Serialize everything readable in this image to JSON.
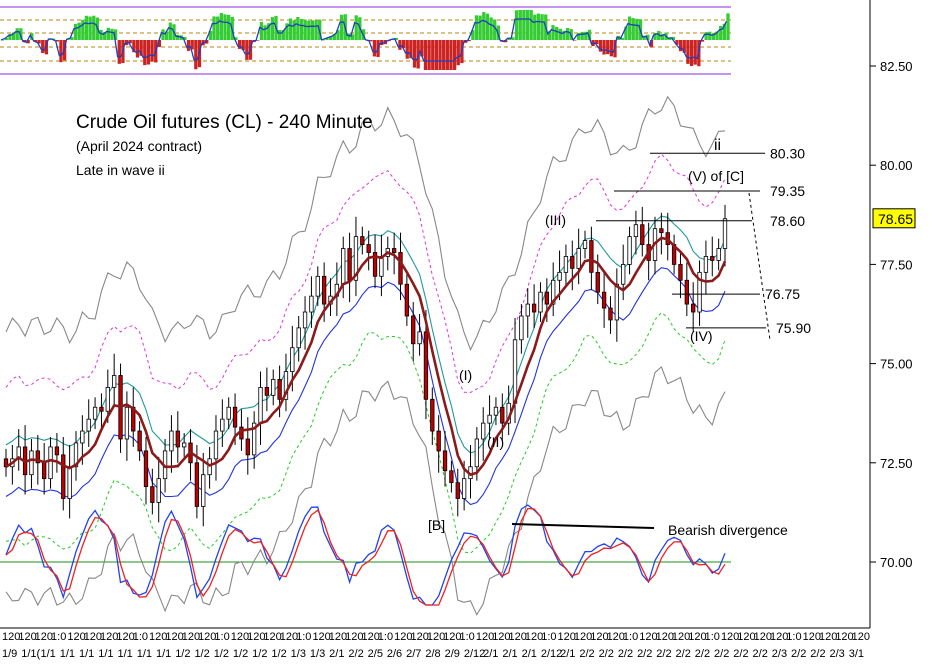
{
  "chart_data": {
    "type": "candlestick",
    "title": "Crude Oil futures (CL) - 240 Minute",
    "subtitle": "(April 2024 contract)",
    "note": "Late in wave ii",
    "ylim": [
      68.5,
      83.8
    ],
    "yticks": [
      "82.50",
      "80.00",
      "77.50",
      "75.00",
      "72.50",
      "70.00"
    ],
    "ytick_values": [
      82.5,
      80.0,
      77.5,
      75.0,
      72.5,
      70.0
    ],
    "last_price": "78.65",
    "last_price_value": 78.65,
    "x_axis_labels_row1": [
      "120",
      "120",
      "120",
      "1:0",
      "120",
      "120",
      "120",
      "120",
      "1:0",
      "120",
      "120",
      "120",
      "120",
      "1:0",
      "120",
      "120",
      "120",
      "120",
      "1:0",
      "120",
      "120",
      "120",
      "120",
      "1:0",
      "120",
      "120",
      "120",
      "120",
      "1:0",
      "120",
      "120",
      "120",
      "120",
      "1:0",
      "120",
      "120",
      "120",
      "120",
      "1:0",
      "120",
      "120",
      "120",
      "120",
      "1:0",
      "120",
      "120",
      "120",
      "120",
      "1:0",
      "120",
      "120",
      "120",
      "120"
    ],
    "x_axis_labels_row2": [
      "1/9",
      "1/1(",
      "1/1",
      "1/1",
      "1/1",
      "1/1",
      "1/1",
      "1/1",
      "1/1",
      "1/2",
      "1/2",
      "1/2",
      "1/2",
      "1/2",
      "1/2",
      "1/3",
      "1/3",
      "2/1",
      "2/2",
      "2/5",
      "2/6",
      "2/7",
      "2/8",
      "2/9",
      "2/12",
      "2/1",
      "2/1",
      "2/1",
      "2/12",
      "2/1",
      "2/2",
      "2/2",
      "2/2",
      "2/2",
      "2/2",
      "2/2",
      "2/2",
      "2/2",
      "2/2",
      "2/2",
      "2/3",
      "2/2",
      "2/2",
      "2/3",
      "3/1"
    ],
    "close_series": [
      72.4,
      72.6,
      72.9,
      72.2,
      72.8,
      72.5,
      72.1,
      72.9,
      72.7,
      71.6,
      72.4,
      73.0,
      73.3,
      73.6,
      73.9,
      73.8,
      74.4,
      74.7,
      73.1,
      73.9,
      73.3,
      72.8,
      71.9,
      71.5,
      72.1,
      72.8,
      73.3,
      72.9,
      73.0,
      72.5,
      71.4,
      72.2,
      72.6,
      73.3,
      73.6,
      73.9,
      73.4,
      73.1,
      72.7,
      73.5,
      74.4,
      74.2,
      74.6,
      74.1,
      74.8,
      75.4,
      75.9,
      76.3,
      76.7,
      77.2,
      76.5,
      76.7,
      77.0,
      77.9,
      77.1,
      78.2,
      78.0,
      77.8,
      77.2,
      77.7,
      77.9,
      77.8,
      77.0,
      76.2,
      75.5,
      75.8,
      74.1,
      73.3,
      72.8,
      72.3,
      72.0,
      71.6,
      72.1,
      72.4,
      73.1,
      73.5,
      73.7,
      73.9,
      73.5,
      74.0,
      75.6,
      76.2,
      76.5,
      76.3,
      76.8,
      76.5,
      77.1,
      77.3,
      77.7,
      77.4,
      77.9,
      78.1,
      77.3,
      76.8,
      76.4,
      76.1,
      77.0,
      77.5,
      78.2,
      78.5,
      78.0,
      77.6,
      78.4,
      78.3,
      78.0,
      77.5,
      77.1,
      76.5,
      76.3,
      77.3,
      77.7,
      77.6,
      77.9,
      78.65
    ],
    "price_levels": [
      {
        "label": "80.30",
        "value": 80.3
      },
      {
        "label": "79.35",
        "value": 79.35
      },
      {
        "label": "78.60",
        "value": 78.6
      },
      {
        "label": "76.75",
        "value": 76.75
      },
      {
        "label": "75.90",
        "value": 75.9
      }
    ],
    "wave_labels": {
      "ii": "ii",
      "v_of_c": "(V) of [C]",
      "iii": "(III)",
      "i": "(I)",
      "ii_small": "(II)",
      "iv": "(IV)",
      "b": "[B]"
    },
    "divergence_label": "Bearish divergence"
  }
}
